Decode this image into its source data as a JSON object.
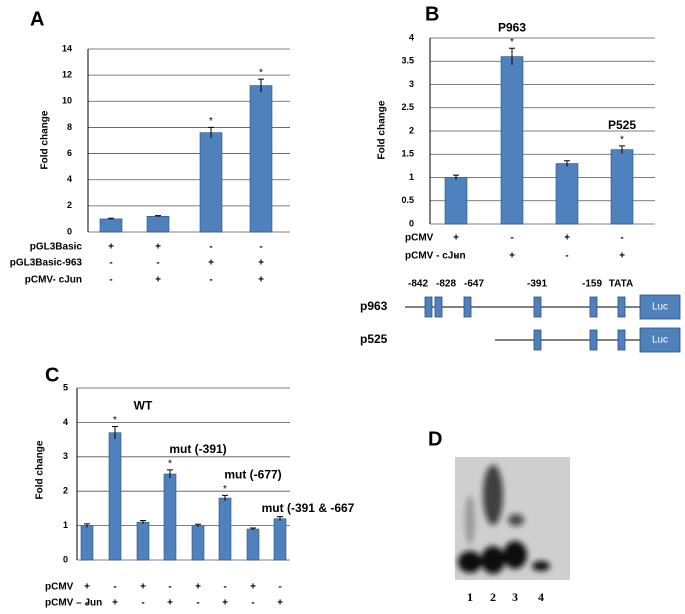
{
  "chart_data": [
    {
      "type": "bar",
      "panel": "A",
      "y_label": "Fold change",
      "color": "#4f81bd",
      "values": [
        1.0,
        1.2,
        7.6,
        11.2
      ],
      "errors": [
        0.05,
        0.05,
        0.4,
        0.5
      ],
      "top_labels": [
        null,
        null,
        null,
        null
      ],
      "stars": [
        null,
        null,
        "*",
        "*"
      ],
      "ylim": [
        0,
        14
      ],
      "yticks": [
        0,
        2,
        4,
        6,
        8,
        10,
        12,
        14
      ],
      "grid": true,
      "conditions": [
        {
          "label": "pGL3Basic",
          "marks": [
            "+",
            "+",
            "-",
            "-"
          ]
        },
        {
          "label": "pGL3Basic-963",
          "marks": [
            "-",
            "-",
            "+",
            "+"
          ]
        },
        {
          "label": "pCMV- cJun",
          "marks": [
            "-",
            "+",
            "-",
            "+"
          ]
        }
      ]
    },
    {
      "type": "bar",
      "panel": "B",
      "y_label": "Fold change",
      "color": "#4f81bd",
      "values": [
        1.0,
        3.6,
        1.3,
        1.6
      ],
      "errors": [
        0.05,
        0.18,
        0.06,
        0.08
      ],
      "top_labels": [
        null,
        "P963",
        null,
        "P525"
      ],
      "stars": [
        null,
        "*",
        null,
        "*"
      ],
      "ylim": [
        0,
        4
      ],
      "yticks": [
        0,
        0.5,
        1,
        1.5,
        2,
        2.5,
        3,
        3.5,
        4
      ],
      "grid": true,
      "conditions": [
        {
          "label": "pCMV",
          "marks": [
            "+",
            "-",
            "+",
            "-"
          ]
        },
        {
          "label": "pCMV - cJun",
          "marks": [
            "-",
            "+",
            "-",
            "+"
          ]
        }
      ]
    },
    {
      "type": "bar",
      "panel": "C",
      "y_label": "Fold change",
      "color": "#4f81bd",
      "values": [
        1.0,
        3.7,
        1.1,
        2.5,
        1.0,
        1.8,
        0.9,
        1.2
      ],
      "errors": [
        0.05,
        0.18,
        0.05,
        0.12,
        0.04,
        0.08,
        0.03,
        0.06
      ],
      "top_labels": [
        null,
        "WT",
        null,
        "mut (-391)",
        null,
        "mut (-677)",
        null,
        "mut (-391 & -667"
      ],
      "stars": [
        null,
        "*",
        null,
        "*",
        null,
        "*",
        null,
        null
      ],
      "ylim": [
        0,
        5
      ],
      "yticks": [
        0,
        1,
        2,
        3,
        4,
        5
      ],
      "grid": true,
      "conditions": [
        {
          "label": "pCMV",
          "marks": [
            "+",
            "-",
            "+",
            "-",
            "+",
            "-",
            "+",
            "-"
          ]
        },
        {
          "label": "pCMV – Jun",
          "marks": [
            "-",
            "+",
            "-",
            "+",
            "-",
            "+",
            "-",
            "+"
          ]
        }
      ]
    }
  ],
  "promoter_diagram": {
    "sites": [
      "-842",
      "-828",
      "-647",
      "-391",
      "-159",
      "TATA"
    ],
    "constructs": [
      "p963",
      "p525"
    ],
    "reporter": "Luc"
  },
  "gel": {
    "panel": "D",
    "lanes": [
      "1",
      "2",
      "3",
      "4"
    ]
  }
}
